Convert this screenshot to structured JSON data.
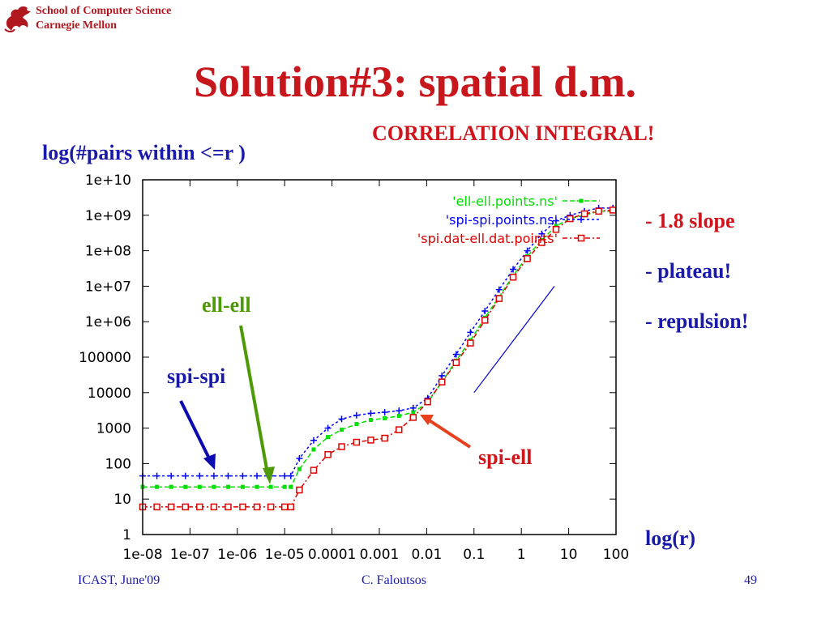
{
  "header": {
    "school_line1": "School of Computer Science",
    "school_line2": "Carnegie Mellon",
    "logo_icon": "griffin-icon"
  },
  "title": "Solution#3: spatial d.m.",
  "subtitle": "CORRELATION INTEGRAL!",
  "notes": [
    "- 1.8 slope",
    "- plateau!",
    "- repulsion!"
  ],
  "annotations": {
    "ell_ell": "ell-ell",
    "spi_spi": "spi-spi",
    "spi_ell": "spi-ell"
  },
  "footer": {
    "left": "ICAST, June'09",
    "center": "C. Faloutsos",
    "right": "49"
  },
  "colors": {
    "title": "#c8161d",
    "text_blue": "#1a1aa8",
    "ell_ell": "#00e000",
    "spi_spi": "#0000ff",
    "spi_ell": "#e00000",
    "arrow_green": "#4e9a06",
    "arrow_red": "#e8401c"
  },
  "chart_data": {
    "type": "line",
    "xscale": "log",
    "yscale": "log",
    "xlim": [
      1e-08,
      100
    ],
    "ylim": [
      1,
      10000000000.0
    ],
    "ylabel": "log(#pairs within <=r )",
    "xlabel": "log(r)",
    "xticks": [
      "1e-08",
      "1e-07",
      "1e-06",
      "1e-05",
      "0.0001",
      "0.001",
      "0.01",
      "0.1",
      "1",
      "10",
      "100"
    ],
    "yticks": [
      "1",
      "10",
      "100",
      "1000",
      "10000",
      "100000",
      "1e+06",
      "1e+07",
      "1e+08",
      "1e+09",
      "1e+10"
    ],
    "legend_position": "top-right",
    "series": [
      {
        "name": "'ell-ell.points.ns'",
        "color": "#00e000",
        "marker": "filled-square",
        "x": [
          1e-08,
          2e-08,
          4e-08,
          8e-08,
          1.6e-07,
          3.2e-07,
          6.4e-07,
          1.3e-06,
          2.6e-06,
          5.1e-06,
          1e-05,
          1.35e-05,
          2.05e-05,
          4.1e-05,
          8.2e-05,
          0.00016,
          0.00033,
          0.00066,
          0.0013,
          0.0026,
          0.0052,
          0.0105,
          0.021,
          0.042,
          0.084,
          0.17,
          0.34,
          0.67,
          1.34,
          2.7,
          5.4,
          10.7,
          21.5,
          43,
          86
        ],
        "y": [
          22,
          22,
          22,
          22,
          22,
          22,
          22,
          22,
          22,
          22,
          22,
          22,
          70,
          250,
          560,
          900,
          1300,
          1700,
          1900,
          2200,
          2800,
          5200,
          20000,
          80000,
          300000,
          1300000,
          5000000,
          20000000,
          70000000,
          200000000,
          500000000,
          800000000,
          1000000000,
          1300000000,
          1300000000
        ]
      },
      {
        "name": "'spi-spi.points.ns'",
        "color": "#0000ff",
        "marker": "plus",
        "x": [
          1e-08,
          2e-08,
          4e-08,
          8e-08,
          1.6e-07,
          3.2e-07,
          6.4e-07,
          1.3e-06,
          2.6e-06,
          5.1e-06,
          1e-05,
          1.35e-05,
          2.05e-05,
          4.1e-05,
          8.2e-05,
          0.00016,
          0.00033,
          0.00066,
          0.0013,
          0.0026,
          0.0052,
          0.0105,
          0.021,
          0.042,
          0.084,
          0.17,
          0.34,
          0.67,
          1.34,
          2.7,
          5.4,
          10.7,
          21.5,
          43,
          86
        ],
        "y": [
          45,
          45,
          45,
          45,
          45,
          45,
          45,
          45,
          45,
          45,
          45,
          45,
          140,
          450,
          1000,
          1800,
          2300,
          2600,
          2800,
          3100,
          3700,
          7000,
          30000,
          120000,
          500000,
          2000000,
          8000000,
          30000000,
          100000000,
          300000000,
          700000000,
          1000000000,
          1300000000,
          1600000000,
          1600000000
        ]
      },
      {
        "name": "'spi.dat-ell.dat.points'",
        "color": "#e00000",
        "marker": "open-square",
        "x": [
          1e-08,
          2e-08,
          4e-08,
          8e-08,
          1.6e-07,
          3.2e-07,
          6.4e-07,
          1.3e-06,
          2.6e-06,
          5.1e-06,
          1e-05,
          1.35e-05,
          2.05e-05,
          4.1e-05,
          8.2e-05,
          0.00016,
          0.00033,
          0.00066,
          0.0013,
          0.0026,
          0.0052,
          0.0105,
          0.021,
          0.042,
          0.084,
          0.17,
          0.34,
          0.67,
          1.34,
          2.7,
          5.4,
          10.7,
          21.5,
          43,
          86
        ],
        "y": [
          6,
          6,
          6,
          6,
          6,
          6,
          6,
          6,
          6,
          6,
          6,
          6,
          18,
          65,
          180,
          300,
          400,
          460,
          520,
          900,
          2000,
          5500,
          20000,
          70000,
          250000,
          1100000,
          4500000,
          18000000,
          60000000,
          170000000,
          400000000,
          800000000,
          1100000000,
          1300000000,
          1400000000
        ]
      }
    ],
    "slope_line": {
      "x": [
        0.1,
        5
      ],
      "y": [
        10000,
        10000000
      ],
      "color": "#0000cc"
    }
  }
}
